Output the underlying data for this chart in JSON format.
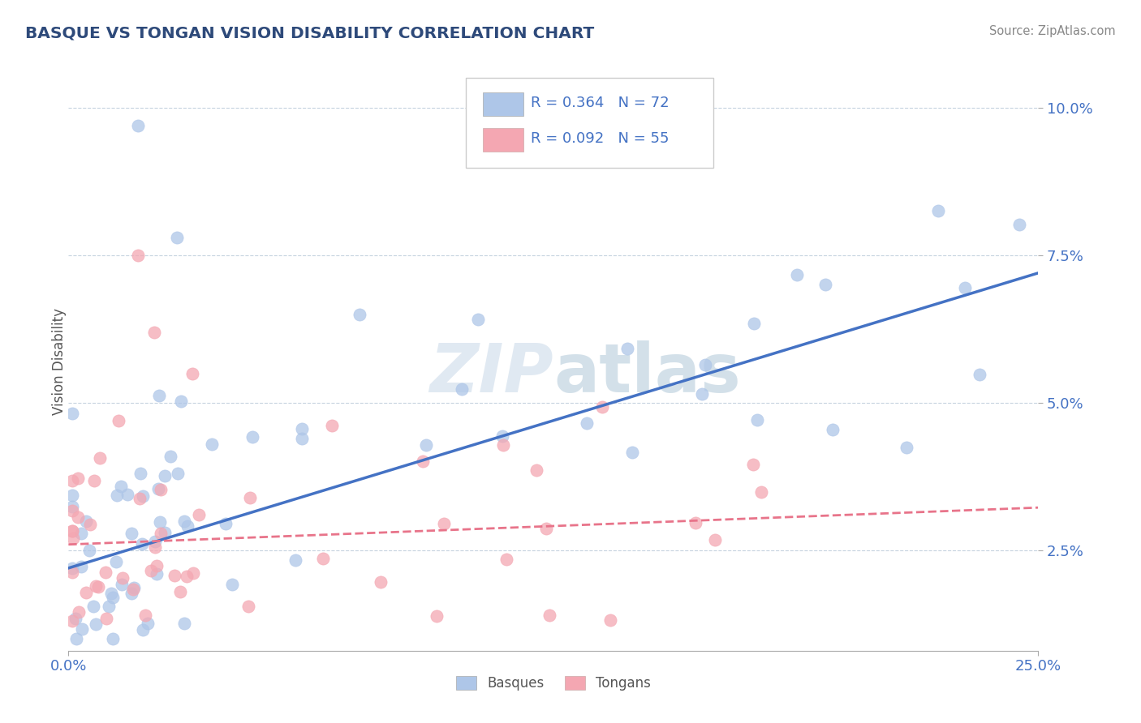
{
  "title": "BASQUE VS TONGAN VISION DISABILITY CORRELATION CHART",
  "source": "Source: ZipAtlas.com",
  "xlabel_basque": "Basques",
  "xlabel_tongan": "Tongans",
  "ylabel": "Vision Disability",
  "xlim": [
    0.0,
    0.25
  ],
  "ylim": [
    0.008,
    0.106
  ],
  "yticks": [
    0.025,
    0.05,
    0.075,
    0.1
  ],
  "ytick_labels": [
    "2.5%",
    "5.0%",
    "7.5%",
    "10.0%"
  ],
  "xticks": [
    0.0,
    0.25
  ],
  "xtick_labels": [
    "0.0%",
    "25.0%"
  ],
  "R_basque": 0.364,
  "N_basque": 72,
  "R_tongan": 0.092,
  "N_tongan": 55,
  "color_basque": "#aec6e8",
  "color_tongan": "#f4a7b2",
  "line_color_basque": "#4472c4",
  "line_color_tongan": "#e8748a",
  "watermark": "ZIPatlas",
  "watermark_color": "#c8d8e8",
  "background_color": "#ffffff",
  "title_color": "#2e4a7a",
  "source_color": "#888888"
}
